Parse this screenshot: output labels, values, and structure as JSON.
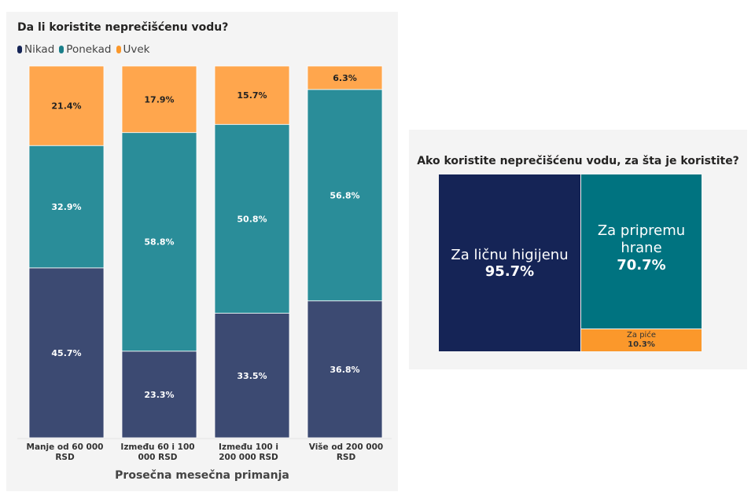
{
  "chart_data": [
    {
      "type": "bar",
      "stacked": "100%",
      "title": "Da li koristite neprečišćenu vodu?",
      "xlabel": "Prosečna mesečna primanja",
      "ylabel": "",
      "legend_position": "top-left",
      "grid": false,
      "categories": [
        "Manje od 60 000 RSD",
        "Između 60 i 100 000 RSD",
        "Između 100 i 200 000 RSD",
        "Više od 200 000 RSD"
      ],
      "series": [
        {
          "name": "Nikad",
          "color": "#3c4a72",
          "legend_color": "#152456",
          "values": [
            45.7,
            23.3,
            33.5,
            36.8
          ],
          "labels": [
            "45.7%",
            "23.3%",
            "33.5%",
            "36.8%"
          ]
        },
        {
          "name": "Ponekad",
          "color": "#2a8d99",
          "legend_color": "#1b7f8a",
          "values": [
            32.9,
            58.8,
            50.8,
            56.8
          ],
          "labels": [
            "32.9%",
            "58.8%",
            "50.8%",
            "56.8%"
          ]
        },
        {
          "name": "Uvek",
          "color": "#ffa64d",
          "legend_color": "#fb982b",
          "values": [
            21.4,
            17.9,
            15.7,
            6.3
          ],
          "labels": [
            "21.4%",
            "17.9%",
            "15.7%",
            "6.3%"
          ]
        }
      ]
    },
    {
      "type": "treemap",
      "title": "Ako koristite neprečišćenu vodu, za šta je koristite?",
      "items": [
        {
          "name": "Za ličnu higijenu",
          "value": 95.7,
          "label": "95.7%",
          "color": "#152456"
        },
        {
          "name": "Za pripremu hrane",
          "value": 70.7,
          "label": "70.7%",
          "color": "#007380"
        },
        {
          "name": "Za piće",
          "value": 10.3,
          "label": "10.3%",
          "color": "#fb982b"
        }
      ]
    }
  ]
}
